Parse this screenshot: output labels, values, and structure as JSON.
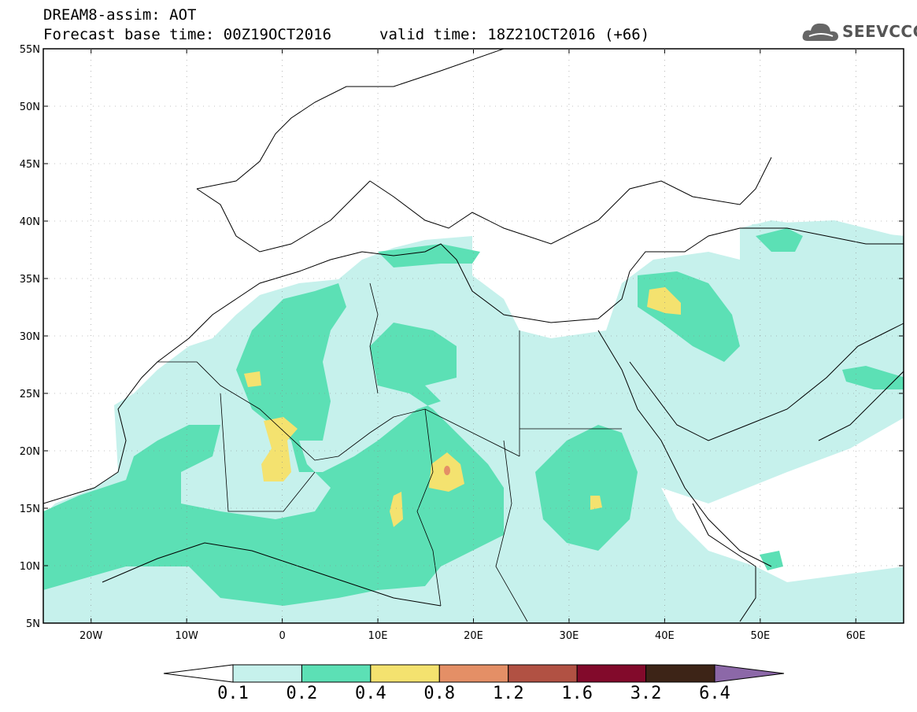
{
  "header": {
    "title": "DREAM8-assim: AOT",
    "base_time": "Forecast base time: 00Z19OCT2016",
    "valid_time": "valid time: 18Z21OCT2016 (+66)"
  },
  "logo": {
    "text": "SEEVCCC",
    "icon": "cloud-icon"
  },
  "map": {
    "lat_labels": [
      "55N",
      "50N",
      "45N",
      "40N",
      "35N",
      "30N",
      "25N",
      "20N",
      "15N",
      "10N",
      "5N"
    ],
    "lon_labels": [
      "20W",
      "10W",
      "0",
      "10E",
      "20E",
      "30E",
      "40E",
      "50E",
      "60E"
    ],
    "lat_range": [
      5,
      55
    ],
    "lon_range": [
      -25,
      65
    ],
    "grid": "dotted",
    "colors": {
      "c1": "#c6f1ec",
      "c2": "#5ce0b5",
      "c3": "#f4e26f",
      "c4": "#e48f66",
      "land_lines": "#000000"
    }
  },
  "colorbar": {
    "labels": [
      "0.1",
      "0.2",
      "0.4",
      "0.8",
      "1.2",
      "1.6",
      "3.2",
      "6.4"
    ],
    "colors": [
      "#ffffff",
      "#c6f1ec",
      "#5ce0b5",
      "#f4e26f",
      "#e48f66",
      "#b15143",
      "#820a2b",
      "#3d2417",
      "#8c68a8"
    ]
  }
}
